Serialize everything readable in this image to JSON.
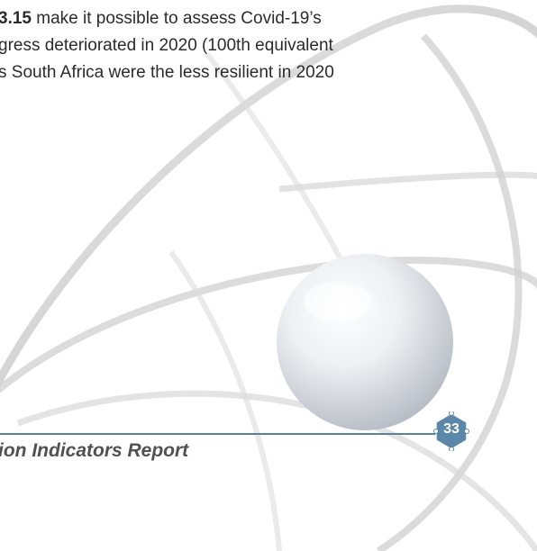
{
  "body_text": {
    "line1_bold": "3.15",
    "line1_rest": " make it possible to assess Covid-19’s",
    "line2": "gress deteriorated in 2020 (100th equivalent",
    "line3": "s South Africa were the less resilient in 2020"
  },
  "footer": {
    "title": "ion Indicators Report",
    "page_number": "33"
  },
  "colors": {
    "rule": "#5d7f97",
    "badge": "#5b87a8",
    "text": "#2b2b2b"
  }
}
